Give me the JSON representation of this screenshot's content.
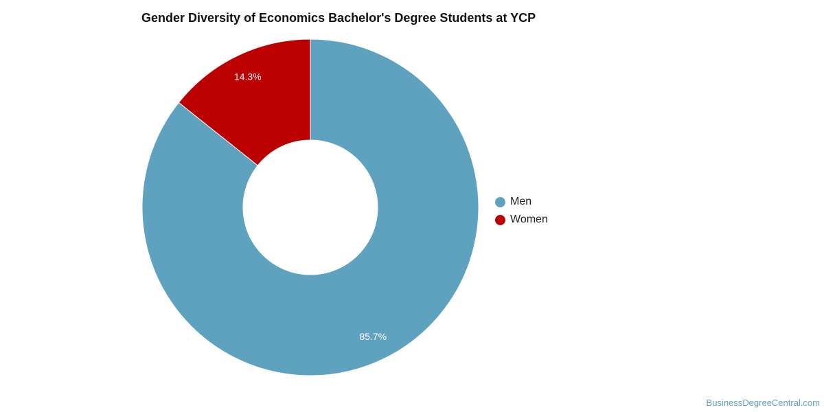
{
  "chart_data": {
    "type": "pie",
    "title": "Gender Diversity of Economics Bachelor's Degree Students at YCP",
    "categories": [
      "Men",
      "Women"
    ],
    "values": [
      85.7,
      14.3
    ],
    "data_labels": [
      "85.7%",
      "14.3%"
    ],
    "colors": [
      "#5ea2c0",
      "#bb0000"
    ],
    "donut": true,
    "legend_position": "right"
  },
  "credit": "BusinessDegreeCentral.com"
}
